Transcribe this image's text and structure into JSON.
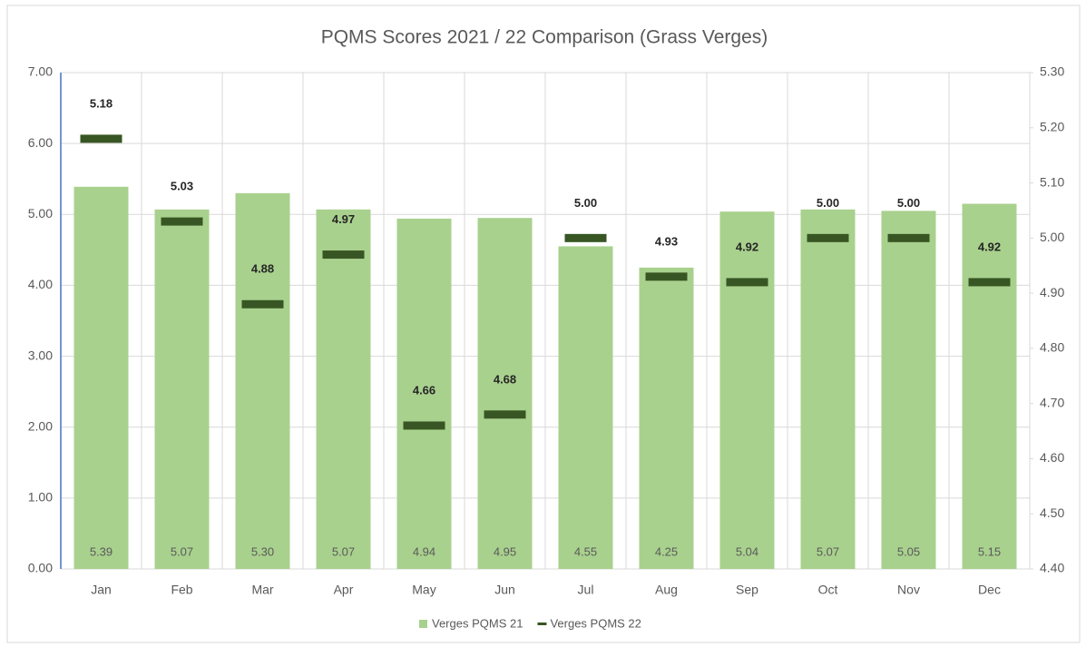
{
  "chart_data": {
    "type": "bar_line",
    "title": "PQMS Scores 2021 / 22 Comparison (Grass Verges)",
    "categories": [
      "Jan",
      "Feb",
      "Mar",
      "Apr",
      "May",
      "Jun",
      "Jul",
      "Aug",
      "Sep",
      "Oct",
      "Nov",
      "Dec"
    ],
    "series": [
      {
        "name": "Verges PQMS 21",
        "color": "#a9d18e",
        "type": "bar",
        "values": [
          5.39,
          5.07,
          5.3,
          5.07,
          4.94,
          4.95,
          4.55,
          4.25,
          5.04,
          5.07,
          5.05,
          5.15
        ],
        "value_labels": [
          "5.39",
          "5.07",
          "5.30",
          "5.07",
          "4.94",
          "4.95",
          "4.55",
          "4.25",
          "5.04",
          "5.07",
          "5.05",
          "5.15"
        ]
      },
      {
        "name": "Verges PQMS 22",
        "color": "#375623",
        "type": "marker",
        "axis": "y2",
        "values": [
          5.18,
          5.03,
          4.88,
          4.97,
          4.66,
          4.68,
          5,
          4.93,
          4.92,
          5,
          5,
          4.92
        ],
        "value_labels": [
          "5.18",
          "5.03",
          "4.88",
          "4.97",
          "4.66",
          "4.68",
          "5.00",
          "4.93",
          "4.92",
          "5.00",
          "5.00",
          "4.92"
        ]
      }
    ],
    "ylim": [
      0,
      7
    ],
    "yticks": [
      {
        "value": 0,
        "label": "0.00"
      },
      {
        "value": 1,
        "label": "1.00"
      },
      {
        "value": 2,
        "label": "2.00"
      },
      {
        "value": 3,
        "label": "3.00"
      },
      {
        "value": 4,
        "label": "4.00"
      },
      {
        "value": 5,
        "label": "5.00"
      },
      {
        "value": 6,
        "label": "6.00"
      },
      {
        "value": 7,
        "label": "7.00"
      }
    ],
    "y2lim": [
      4.4,
      5.3
    ],
    "y2ticks": [
      {
        "value": 4.4,
        "label": "4.40"
      },
      {
        "value": 4.5,
        "label": "4.50"
      },
      {
        "value": 4.6,
        "label": "4.60"
      },
      {
        "value": 4.7,
        "label": "4.70"
      },
      {
        "value": 4.8,
        "label": "4.80"
      },
      {
        "value": 4.9,
        "label": "4.90"
      },
      {
        "value": 5,
        "label": "5.00"
      },
      {
        "value": 5.1,
        "label": "5.10"
      },
      {
        "value": 5.2,
        "label": "5.20"
      },
      {
        "value": 5.3,
        "label": "5.30"
      }
    ],
    "grid": true,
    "legend": "bottom"
  }
}
